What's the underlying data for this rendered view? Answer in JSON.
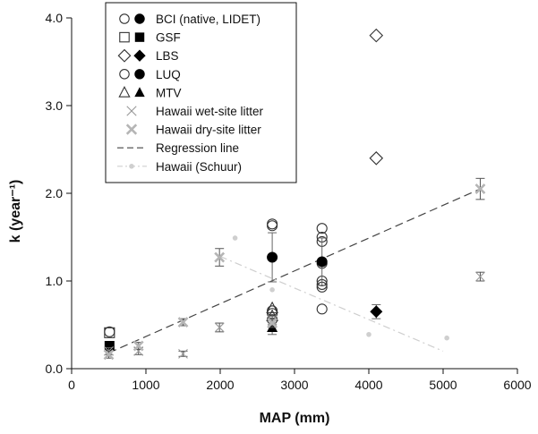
{
  "chart_data": {
    "type": "scatter",
    "xlabel": "MAP (mm)",
    "ylabel": "k (year⁻¹)",
    "xlim": [
      0,
      6000
    ],
    "ylim": [
      0,
      4.0
    ],
    "x_ticks": [
      "0",
      "1000",
      "2000",
      "3000",
      "4000",
      "5000",
      "6000"
    ],
    "y_ticks": [
      "0.0",
      "1.0",
      "2.0",
      "3.0",
      "4.0"
    ],
    "grid": false,
    "legend_position": "top-left",
    "legend": [
      {
        "label": "BCI (native, LIDET)",
        "symbols": [
          "circle-open",
          "circle-filled"
        ]
      },
      {
        "label": "GSF",
        "symbols": [
          "square-open",
          "square-filled"
        ]
      },
      {
        "label": "LBS",
        "symbols": [
          "diamond-open",
          "diamond-filled"
        ]
      },
      {
        "label": "LUQ",
        "symbols": [
          "circle-open",
          "circle-filled"
        ]
      },
      {
        "label": "MTV",
        "symbols": [
          "triangle-open",
          "triangle-filled"
        ]
      },
      {
        "label": "Hawaii wet-site litter",
        "symbols": [
          "x-light"
        ]
      },
      {
        "label": "Hawaii dry-site litter",
        "symbols": [
          "x-bold"
        ]
      },
      {
        "label": "Regression line",
        "symbols": [
          "dashed-line"
        ]
      },
      {
        "label": "Hawaii (Schuur)",
        "symbols": [
          "dash-dot-line"
        ]
      }
    ],
    "series": [
      {
        "marker": "circle-open",
        "points": [
          [
            2700,
            1.65
          ],
          [
            2700,
            1.63
          ],
          [
            2700,
            0.66
          ],
          [
            2700,
            0.63
          ],
          [
            2700,
            0.56
          ],
          [
            3370,
            1.6
          ],
          [
            3370,
            1.5
          ],
          [
            3370,
            1.45
          ],
          [
            3370,
            1.2
          ],
          [
            3370,
            1.0
          ],
          [
            3370,
            0.96
          ],
          [
            3370,
            0.93
          ],
          [
            3370,
            0.68
          ],
          [
            510,
            0.42
          ]
        ]
      },
      {
        "marker": "circle-filled",
        "points": [
          [
            2700,
            1.27,
            0.28
          ],
          [
            3370,
            1.22,
            0.27
          ]
        ]
      },
      {
        "marker": "square-open",
        "points": [
          [
            510,
            0.41
          ]
        ]
      },
      {
        "marker": "square-filled",
        "points": [
          [
            510,
            0.26
          ]
        ]
      },
      {
        "marker": "diamond-open",
        "points": [
          [
            4100,
            3.8
          ],
          [
            4100,
            2.4
          ]
        ]
      },
      {
        "marker": "diamond-filled",
        "points": [
          [
            4100,
            0.65,
            0.08
          ]
        ]
      },
      {
        "marker": "triangle-open",
        "points": [
          [
            2700,
            0.69
          ],
          [
            2700,
            0.6
          ]
        ]
      },
      {
        "marker": "triangle-filled",
        "points": [
          [
            2700,
            0.47,
            0.08
          ]
        ]
      },
      {
        "marker": "x-light",
        "points": [
          [
            500,
            0.2,
            0.04
          ],
          [
            900,
            0.2,
            0.04
          ],
          [
            1500,
            0.17,
            0.03
          ],
          [
            1990,
            0.47,
            0.05
          ],
          [
            2700,
            0.55,
            0.05
          ],
          [
            5500,
            1.05,
            0.05
          ]
        ]
      },
      {
        "marker": "x-bold",
        "points": [
          [
            500,
            0.16,
            0.04
          ],
          [
            900,
            0.26,
            0.04
          ],
          [
            1500,
            0.53,
            0.04
          ],
          [
            1990,
            1.27,
            0.1
          ],
          [
            2700,
            0.52,
            0.05
          ],
          [
            5500,
            2.05,
            0.12
          ]
        ]
      },
      {
        "marker": "schuur-dot",
        "points": [
          [
            2200,
            1.49
          ],
          [
            2700,
            0.9
          ],
          [
            4000,
            0.39
          ],
          [
            5050,
            0.35
          ]
        ]
      }
    ],
    "lines": [
      {
        "style": "dashed",
        "points": [
          [
            500,
            0.18
          ],
          [
            5500,
            2.05
          ]
        ]
      },
      {
        "style": "dash-dot",
        "points": [
          [
            2000,
            1.28
          ],
          [
            5000,
            0.2
          ]
        ]
      }
    ]
  }
}
